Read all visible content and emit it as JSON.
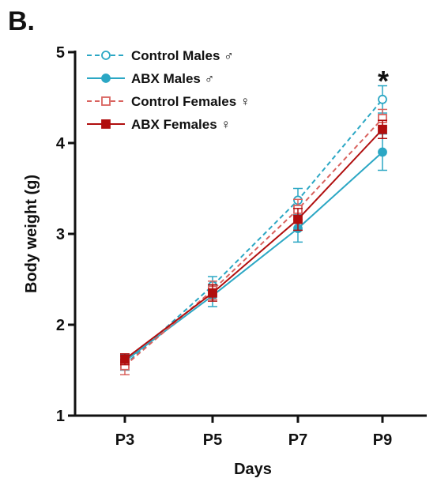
{
  "panel_label": "B.",
  "chart_data": {
    "type": "line",
    "xlabel": "Days",
    "ylabel": "Body weight (g)",
    "categories": [
      "P3",
      "P5",
      "P7",
      "P9"
    ],
    "ylim": [
      1,
      5
    ],
    "yticks": [
      "1",
      "2",
      "3",
      "4",
      "5"
    ],
    "grid": false,
    "legend_position": "top-left",
    "annotations": [
      {
        "text": "*",
        "category": "P9"
      }
    ],
    "series": [
      {
        "name": "Control Males ♂",
        "color": "#2BA7C4",
        "line_style": "dashed",
        "marker": "open-circle",
        "values": [
          1.56,
          2.43,
          3.37,
          4.48
        ],
        "errors": [
          0.06,
          0.1,
          0.13,
          0.15
        ]
      },
      {
        "name": "ABX Males ♂",
        "color": "#2BA7C4",
        "line_style": "solid",
        "marker": "filled-circle",
        "values": [
          1.6,
          2.32,
          3.06,
          3.9
        ],
        "errors": [
          0.07,
          0.12,
          0.15,
          0.2
        ]
      },
      {
        "name": "Control Females ♀",
        "color": "#D9625E",
        "line_style": "dashed",
        "marker": "open-square",
        "values": [
          1.55,
          2.38,
          3.27,
          4.27
        ],
        "errors": [
          0.1,
          0.1,
          0.11,
          0.1
        ]
      },
      {
        "name": "ABX Females ♀",
        "color": "#B00E0E",
        "line_style": "solid",
        "marker": "filled-square",
        "values": [
          1.62,
          2.35,
          3.16,
          4.15
        ],
        "errors": [
          0.06,
          0.09,
          0.12,
          0.1
        ]
      }
    ]
  }
}
